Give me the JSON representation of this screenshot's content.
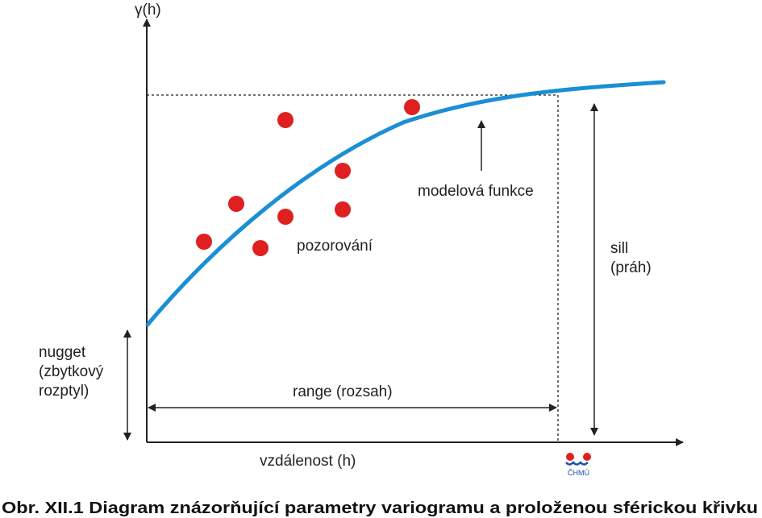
{
  "diagram": {
    "y_axis_label": "γ(h)",
    "x_axis_label": "vzdálenost (h)",
    "model_label": "modelová funkce",
    "observation_label": "pozorování",
    "sill_label_line1": "sill",
    "sill_label_line2": "(práh)",
    "nugget_label_line1": "nugget",
    "nugget_label_line2": "(zbytkový",
    "nugget_label_line3": "rozptyl)",
    "range_label": "range (rozsah)",
    "caption": "Obr. XII.1  Diagram znázorňující parametry variogramu a proloženou sférickou křivku"
  },
  "logo": {
    "text": "ČHMÚ"
  },
  "colors": {
    "curve": "#1a8fd6",
    "points": "#e02020",
    "axes": "#222222"
  },
  "chart_data": {
    "type": "scatter",
    "title": "",
    "xlabel": "vzdálenost (h)",
    "ylabel": "γ(h)",
    "series": [
      {
        "name": "pozorování",
        "points": [
          [
            1.3,
            4.1
          ],
          [
            2.3,
            5.4
          ],
          [
            2.8,
            3.8
          ],
          [
            3.3,
            6.7
          ],
          [
            3.3,
            4.9
          ],
          [
            4.5,
            5.0
          ],
          [
            4.5,
            5.9
          ],
          [
            6.3,
            7.6
          ]
        ]
      },
      {
        "name": "modelová funkce",
        "points": [
          [
            0,
            2.65
          ],
          [
            1,
            3.96
          ],
          [
            2,
            5.04
          ],
          [
            3,
            5.9
          ],
          [
            4,
            6.55
          ],
          [
            5,
            7.03
          ],
          [
            6,
            7.36
          ],
          [
            7,
            7.58
          ],
          [
            8,
            7.71
          ],
          [
            9,
            7.79
          ],
          [
            10,
            7.84
          ]
        ]
      }
    ],
    "sill": 7.5,
    "nugget": 2.65,
    "range": 8.4
  }
}
